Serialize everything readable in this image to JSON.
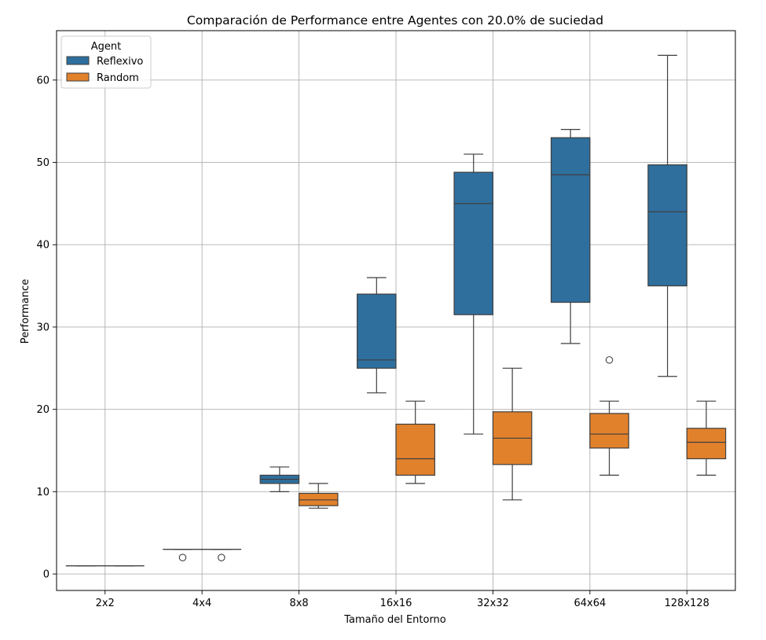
{
  "chart_data": {
    "type": "box",
    "title": "Comparación de Performance entre Agentes con 20.0% de suciedad",
    "xlabel": "Tamaño del Entorno",
    "ylabel": "Performance",
    "categories": [
      "2x2",
      "4x4",
      "8x8",
      "16x16",
      "32x32",
      "64x64",
      "128x128"
    ],
    "ylim": [
      -2,
      66
    ],
    "yticks": [
      0,
      10,
      20,
      30,
      40,
      50,
      60
    ],
    "grid": true,
    "legend": {
      "title": "Agent",
      "position": "top-left"
    },
    "series": [
      {
        "name": "Reflexivo",
        "color": "#2e6f9e",
        "boxes": [
          {
            "whisker_low": 1,
            "q1": 1,
            "median": 1,
            "q3": 1,
            "whisker_high": 1,
            "outliers": []
          },
          {
            "whisker_low": 3,
            "q1": 3,
            "median": 3,
            "q3": 3,
            "whisker_high": 3,
            "outliers": [
              2
            ]
          },
          {
            "whisker_low": 10,
            "q1": 11,
            "median": 11.5,
            "q3": 12,
            "whisker_high": 13,
            "outliers": []
          },
          {
            "whisker_low": 22,
            "q1": 25,
            "median": 26,
            "q3": 34,
            "whisker_high": 36,
            "outliers": []
          },
          {
            "whisker_low": 17,
            "q1": 31.5,
            "median": 45,
            "q3": 48.8,
            "whisker_high": 51,
            "outliers": []
          },
          {
            "whisker_low": 28,
            "q1": 33,
            "median": 48.5,
            "q3": 53,
            "whisker_high": 54,
            "outliers": []
          },
          {
            "whisker_low": 24,
            "q1": 35,
            "median": 44,
            "q3": 49.7,
            "whisker_high": 63,
            "outliers": []
          }
        ]
      },
      {
        "name": "Random",
        "color": "#e1812c",
        "boxes": [
          {
            "whisker_low": 1,
            "q1": 1,
            "median": 1,
            "q3": 1,
            "whisker_high": 1,
            "outliers": []
          },
          {
            "whisker_low": 3,
            "q1": 3,
            "median": 3,
            "q3": 3,
            "whisker_high": 3,
            "outliers": [
              2
            ]
          },
          {
            "whisker_low": 8,
            "q1": 8.3,
            "median": 9,
            "q3": 9.8,
            "whisker_high": 11,
            "outliers": []
          },
          {
            "whisker_low": 11,
            "q1": 12,
            "median": 14,
            "q3": 18.2,
            "whisker_high": 21,
            "outliers": []
          },
          {
            "whisker_low": 9,
            "q1": 13.3,
            "median": 16.5,
            "q3": 19.7,
            "whisker_high": 25,
            "outliers": []
          },
          {
            "whisker_low": 12,
            "q1": 15.3,
            "median": 17,
            "q3": 19.5,
            "whisker_high": 21,
            "outliers": [
              26
            ]
          },
          {
            "whisker_low": 12,
            "q1": 14,
            "median": 16,
            "q3": 17.7,
            "whisker_high": 21,
            "outliers": []
          }
        ]
      }
    ]
  }
}
